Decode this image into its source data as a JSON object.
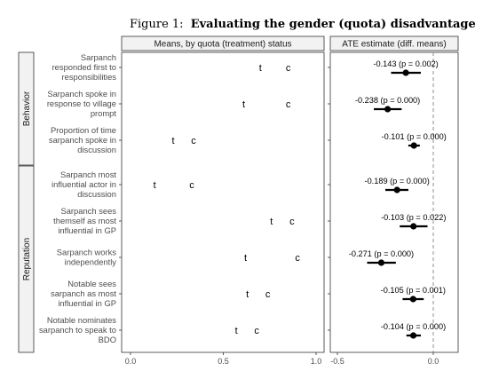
{
  "figure": {
    "title_prefix": "Figure 1:",
    "title_bold": "Evaluating the gender (quota) disadvantage"
  },
  "chart_data": [
    {
      "type": "scatter",
      "title": "Means, by quota (treatment) status",
      "markers": {
        "treatment": "t",
        "control": "c"
      },
      "xlim": [
        0,
        1
      ],
      "xticks": [
        "0.0",
        "0.5",
        "1.0"
      ],
      "grid": false,
      "groups": [
        "Behavior",
        "Reputation"
      ],
      "categories": [
        {
          "group": "Behavior",
          "label": [
            "Sarpanch",
            "responded first to",
            "responsibilities"
          ],
          "t": 0.7,
          "c": 0.85
        },
        {
          "group": "Behavior",
          "label": [
            "Sarpanch spoke in",
            "response to village",
            "prompt"
          ],
          "t": 0.61,
          "c": 0.85
        },
        {
          "group": "Behavior",
          "label": [
            "Proportion of time",
            "sarpanch spoke in",
            "discussion"
          ],
          "t": 0.23,
          "c": 0.34
        },
        {
          "group": "Reputation",
          "label": [
            "Sarpanch most",
            "influential actor in",
            "discussion"
          ],
          "t": 0.13,
          "c": 0.33
        },
        {
          "group": "Reputation",
          "label": [
            "Sarpanch sees",
            "themself as most",
            "influential in GP"
          ],
          "t": 0.76,
          "c": 0.87
        },
        {
          "group": "Reputation",
          "label": [
            "Sarpanch works",
            "independently"
          ],
          "t": 0.62,
          "c": 0.9
        },
        {
          "group": "Reputation",
          "label": [
            "Notable sees",
            "sarpanch as most",
            "influential in GP"
          ],
          "t": 0.63,
          "c": 0.74
        },
        {
          "group": "Reputation",
          "label": [
            "Notable nominates",
            "sarpanch to speak to",
            "BDO"
          ],
          "t": 0.57,
          "c": 0.68
        }
      ]
    },
    {
      "type": "scatter",
      "title": "ATE estimate (diff. means)",
      "xlim": [
        -0.55,
        0.12
      ],
      "xticks": [
        "-0.5",
        "0.0"
      ],
      "reference_line": 0,
      "grid": false,
      "points": [
        {
          "estimate": -0.143,
          "ci": [
            -0.22,
            -0.065
          ],
          "label": "-0.143 (p = 0.002)"
        },
        {
          "estimate": -0.238,
          "ci": [
            -0.31,
            -0.165
          ],
          "label": "-0.238 (p = 0.000)"
        },
        {
          "estimate": -0.101,
          "ci": [
            -0.13,
            -0.07
          ],
          "label": "-0.101 (p = 0.000)"
        },
        {
          "estimate": -0.189,
          "ci": [
            -0.25,
            -0.13
          ],
          "label": "-0.189 (p = 0.000)"
        },
        {
          "estimate": -0.103,
          "ci": [
            -0.175,
            -0.03
          ],
          "label": "-0.103 (p = 0.022)"
        },
        {
          "estimate": -0.271,
          "ci": [
            -0.345,
            -0.195
          ],
          "label": "-0.271 (p = 0.000)"
        },
        {
          "estimate": -0.105,
          "ci": [
            -0.16,
            -0.05
          ],
          "label": "-0.105 (p = 0.001)"
        },
        {
          "estimate": -0.104,
          "ci": [
            -0.14,
            -0.065
          ],
          "label": "-0.104 (p = 0.000)"
        }
      ]
    }
  ]
}
